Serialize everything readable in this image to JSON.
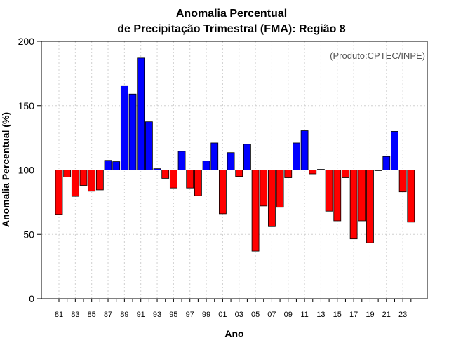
{
  "chart_data": {
    "type": "bar",
    "title_line1": "Anomalia Percentual",
    "title_line2": "de Precipitação Trimestral (FMA): Região 8",
    "credit": "(Produto:CPTEC/INPE)",
    "xlabel": "Ano",
    "ylabel": "Anomalia Percentual (%)",
    "ylim": [
      0,
      200
    ],
    "yticks": [
      0,
      50,
      100,
      150,
      200
    ],
    "baseline": 100,
    "grid": true,
    "colors": {
      "above": "#0000ff",
      "below": "#ff0000",
      "edge": "#000000",
      "grid": "#d0d0d0",
      "baseline": "#000000"
    },
    "categories": [
      "81",
      "82",
      "83",
      "84",
      "85",
      "86",
      "87",
      "88",
      "89",
      "90",
      "91",
      "92",
      "93",
      "94",
      "95",
      "96",
      "97",
      "98",
      "99",
      "00",
      "01",
      "02",
      "03",
      "04",
      "05",
      "06",
      "07",
      "08",
      "09",
      "10",
      "11",
      "12",
      "13",
      "14",
      "15",
      "16",
      "17",
      "18",
      "19",
      "20",
      "21",
      "22",
      "23",
      "24"
    ],
    "tick_labels": [
      "81",
      "83",
      "85",
      "87",
      "89",
      "91",
      "93",
      "95",
      "97",
      "99",
      "01",
      "03",
      "05",
      "07",
      "09",
      "11",
      "13",
      "15",
      "17",
      "19",
      "21",
      "23"
    ],
    "values": [
      65.5,
      94.5,
      79.5,
      88,
      83.5,
      84.5,
      107.5,
      106.5,
      165.5,
      159,
      187,
      137.5,
      101,
      93.5,
      86,
      114.5,
      86,
      80,
      107,
      121,
      66,
      113.5,
      95,
      120,
      37,
      72,
      56,
      71,
      94,
      121,
      130.5,
      97,
      100.5,
      68,
      60.5,
      94,
      46.5,
      60.5,
      43.5,
      99.5,
      110.5,
      130,
      83,
      59.5
    ]
  }
}
